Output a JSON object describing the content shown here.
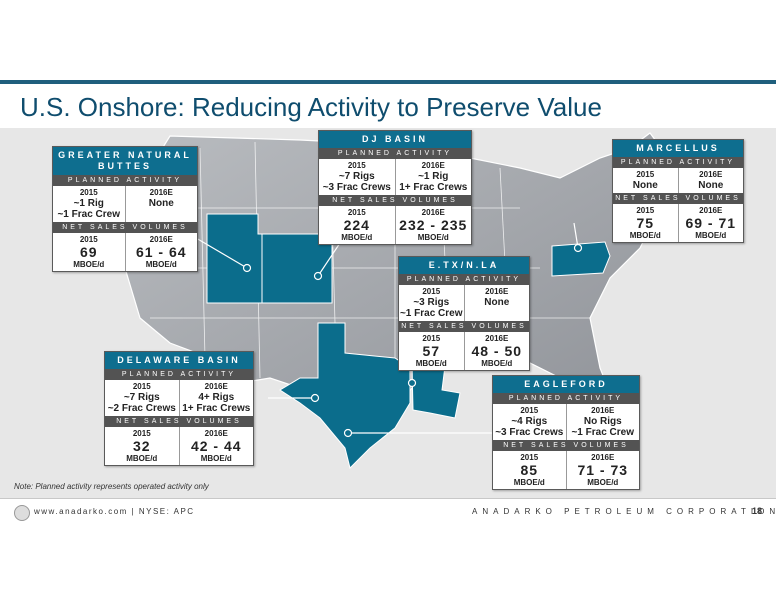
{
  "title": "U.S. Onshore: Reducing Activity to Preserve Value",
  "labels": {
    "planned": "PLANNED ACTIVITY",
    "volumes": "NET SALES VOLUMES"
  },
  "note": "Note: Planned activity represents operated activity only",
  "footer": {
    "website": "www.anadarko.com | NYSE: APC",
    "company": "ANADARKO PETROLEUM CORPORATION",
    "page": "18"
  },
  "colors": {
    "accent": "#0e6e8f",
    "highlight_state": "#0b6d8c",
    "title": "#0f4d6e"
  },
  "basins": {
    "gnb": {
      "name": "GREATER NATURAL BUTTES",
      "act2015_year": "2015",
      "act2015": "~1 Rig\n~1 Frac Crew",
      "act2016_year": "2016E",
      "act2016": "None",
      "vol2015_year": "2015",
      "vol2015": "69",
      "vol2016_year": "2016E",
      "vol2016": "61 - 64",
      "unit": "MBOE/d"
    },
    "dj": {
      "name": "DJ BASIN",
      "act2015_year": "2015",
      "act2015": "~7 Rigs\n~3 Frac Crews",
      "act2016_year": "2016E",
      "act2016": "~1 Rig\n1+ Frac Crews",
      "vol2015_year": "2015",
      "vol2015": "224",
      "vol2016_year": "2016E",
      "vol2016": "232 - 235",
      "unit": "MBOE/d"
    },
    "marcellus": {
      "name": "MARCELLUS",
      "act2015_year": "2015",
      "act2015": "None",
      "act2016_year": "2016E",
      "act2016": "None",
      "vol2015_year": "2015",
      "vol2015": "75",
      "vol2016_year": "2016E",
      "vol2016": "69 - 71",
      "unit": "MBOE/d"
    },
    "etx": {
      "name": "E.TX/N.LA",
      "act2015_year": "2015",
      "act2015": "~3 Rigs\n~1 Frac Crew",
      "act2016_year": "2016E",
      "act2016": "None",
      "vol2015_year": "2015",
      "vol2015": "57",
      "vol2016_year": "2016E",
      "vol2016": "48 - 50",
      "unit": "MBOE/d"
    },
    "delaware": {
      "name": "DELAWARE BASIN",
      "act2015_year": "2015",
      "act2015": "~7 Rigs\n~2 Frac Crews",
      "act2016_year": "2016E",
      "act2016": "4+ Rigs\n1+ Frac Crews",
      "vol2015_year": "2015",
      "vol2015": "32",
      "vol2016_year": "2016E",
      "vol2016": "42 - 44",
      "unit": "MBOE/d"
    },
    "eagleford": {
      "name": "EAGLEFORD",
      "act2015_year": "2015",
      "act2015": "~4 Rigs\n~3 Frac Crews",
      "act2016_year": "2016E",
      "act2016": "No Rigs\n~1 Frac Crew",
      "vol2015_year": "2015",
      "vol2015": "85",
      "vol2016_year": "2016E",
      "vol2016": "71 - 73",
      "unit": "MBOE/d"
    }
  }
}
